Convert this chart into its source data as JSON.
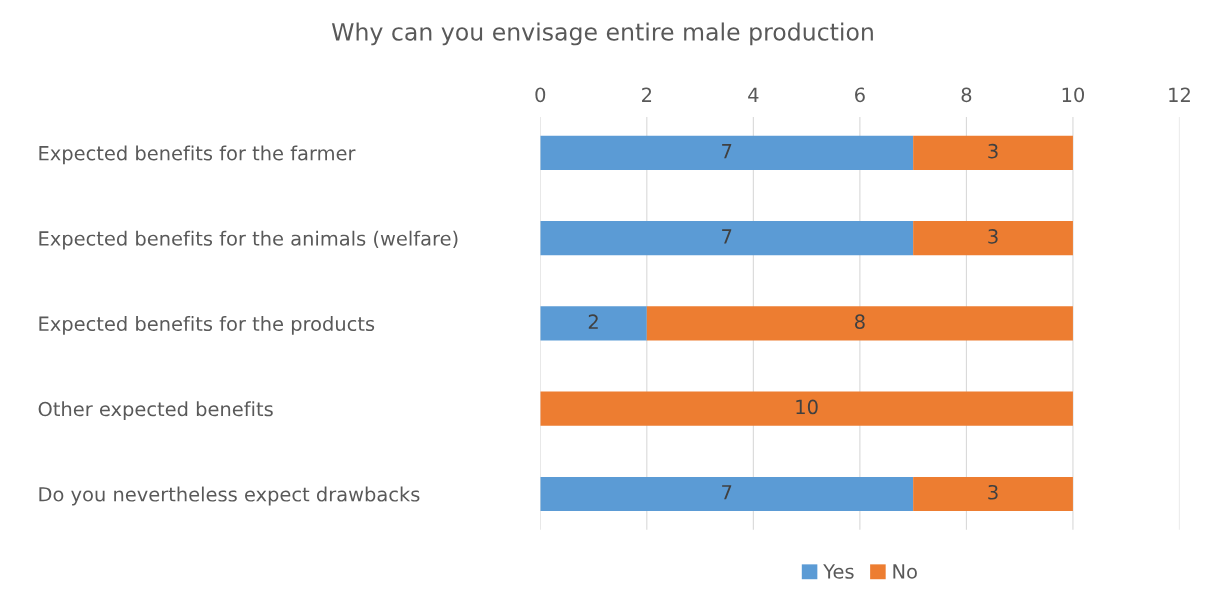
{
  "chart_data": {
    "type": "bar",
    "orientation": "horizontal",
    "stacked": true,
    "title": "Why can you envisage entire male production",
    "categories": [
      "Expected benefits for the farmer",
      "Expected benefits for the animals (welfare)",
      "Expected benefits for the products",
      "Other expected benefits",
      "Do you nevertheless expect drawbacks"
    ],
    "series": [
      {
        "name": "Yes",
        "color": "#5b9bd5",
        "values": [
          7,
          7,
          2,
          0,
          7
        ],
        "value_labels": [
          "7",
          "7",
          "2",
          null,
          "7"
        ]
      },
      {
        "name": "No",
        "color": "#ed7d31",
        "values": [
          3,
          3,
          8,
          10,
          3
        ],
        "value_labels": [
          "3",
          "3",
          "8",
          "10",
          "3"
        ]
      }
    ],
    "xlim": [
      0,
      12
    ],
    "xticks": [
      0,
      2,
      4,
      6,
      8,
      10,
      12
    ],
    "grid": "x",
    "legend": "bottom"
  }
}
